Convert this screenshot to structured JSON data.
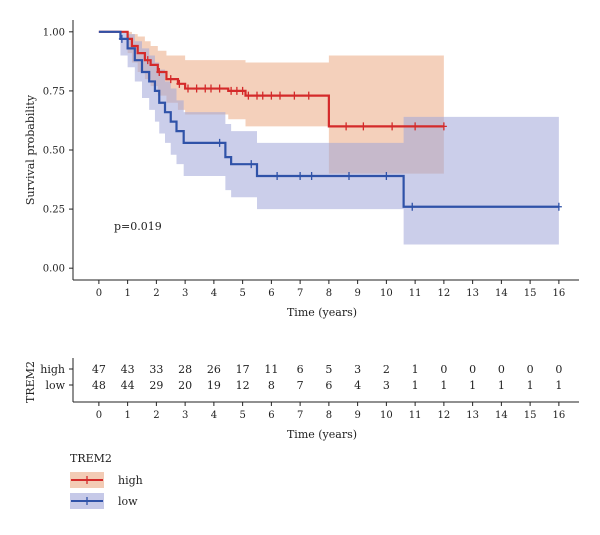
{
  "chart_data": [
    {
      "type": "line",
      "subtype": "kaplan-meier",
      "title": "",
      "xlabel": "Time (years)",
      "ylabel": "Survival probability",
      "xlim": [
        -0.9,
        16.7
      ],
      "ylim": [
        -0.05,
        1.05
      ],
      "xticks": [
        "0",
        "1",
        "2",
        "3",
        "4",
        "5",
        "6",
        "7",
        "8",
        "9",
        "10",
        "11",
        "12",
        "13",
        "14",
        "15",
        "16"
      ],
      "yticks": [
        "0.00",
        "0.25",
        "0.50",
        "0.75",
        "1.00"
      ],
      "annotation": "p=0.019",
      "grid": false,
      "series": [
        {
          "name": "high",
          "color": "#d42a2a",
          "band_color": "#eba984",
          "steps": [
            [
              0,
              1.0
            ],
            [
              1.0,
              0.97
            ],
            [
              1.15,
              0.94
            ],
            [
              1.35,
              0.91
            ],
            [
              1.6,
              0.88
            ],
            [
              1.8,
              0.86
            ],
            [
              2.05,
              0.83
            ],
            [
              2.35,
              0.8
            ],
            [
              2.75,
              0.78
            ],
            [
              3.0,
              0.76
            ],
            [
              4.5,
              0.75
            ],
            [
              5.1,
              0.73
            ],
            [
              8.0,
              0.6
            ],
            [
              12.0,
              0.6
            ]
          ],
          "ci_lower": [
            [
              0,
              1.0
            ],
            [
              1.0,
              0.91
            ],
            [
              1.15,
              0.87
            ],
            [
              1.35,
              0.83
            ],
            [
              1.6,
              0.8
            ],
            [
              1.8,
              0.77
            ],
            [
              2.05,
              0.73
            ],
            [
              2.35,
              0.7
            ],
            [
              2.75,
              0.67
            ],
            [
              3.0,
              0.65
            ],
            [
              4.5,
              0.63
            ],
            [
              5.1,
              0.6
            ],
            [
              8.0,
              0.4
            ],
            [
              12.0,
              0.4
            ]
          ],
          "ci_upper": [
            [
              0,
              1.0
            ],
            [
              1.0,
              1.0
            ],
            [
              1.15,
              0.99
            ],
            [
              1.35,
              0.98
            ],
            [
              1.6,
              0.96
            ],
            [
              1.8,
              0.94
            ],
            [
              2.05,
              0.92
            ],
            [
              2.35,
              0.9
            ],
            [
              2.75,
              0.9
            ],
            [
              3.0,
              0.88
            ],
            [
              4.5,
              0.88
            ],
            [
              5.1,
              0.87
            ],
            [
              8.0,
              0.9
            ],
            [
              12.0,
              0.9
            ]
          ],
          "censor_times": [
            1.7,
            2.1,
            2.5,
            2.8,
            3.1,
            3.4,
            3.7,
            3.9,
            4.2,
            4.6,
            4.8,
            5.0,
            5.2,
            5.5,
            5.7,
            6.0,
            6.3,
            6.8,
            7.3,
            8.6,
            9.2,
            10.2,
            11.0,
            12.0
          ]
        },
        {
          "name": "low",
          "color": "#2f52a8",
          "band_color": "#a0a5d8",
          "steps": [
            [
              0,
              1.0
            ],
            [
              0.75,
              0.97
            ],
            [
              1.0,
              0.93
            ],
            [
              1.25,
              0.88
            ],
            [
              1.5,
              0.83
            ],
            [
              1.75,
              0.79
            ],
            [
              1.95,
              0.75
            ],
            [
              2.1,
              0.7
            ],
            [
              2.3,
              0.66
            ],
            [
              2.5,
              0.62
            ],
            [
              2.7,
              0.58
            ],
            [
              2.95,
              0.53
            ],
            [
              4.4,
              0.47
            ],
            [
              4.6,
              0.44
            ],
            [
              5.5,
              0.39
            ],
            [
              10.6,
              0.26
            ],
            [
              16.0,
              0.26
            ]
          ],
          "ci_lower": [
            [
              0,
              1.0
            ],
            [
              0.75,
              0.9
            ],
            [
              1.0,
              0.85
            ],
            [
              1.25,
              0.79
            ],
            [
              1.5,
              0.72
            ],
            [
              1.75,
              0.67
            ],
            [
              1.95,
              0.62
            ],
            [
              2.1,
              0.57
            ],
            [
              2.3,
              0.53
            ],
            [
              2.5,
              0.48
            ],
            [
              2.7,
              0.44
            ],
            [
              2.95,
              0.39
            ],
            [
              4.4,
              0.33
            ],
            [
              4.6,
              0.3
            ],
            [
              5.5,
              0.25
            ],
            [
              10.6,
              0.1
            ],
            [
              16.0,
              0.1
            ]
          ],
          "ci_upper": [
            [
              0,
              1.0
            ],
            [
              0.75,
              1.0
            ],
            [
              1.0,
              0.99
            ],
            [
              1.25,
              0.96
            ],
            [
              1.5,
              0.93
            ],
            [
              1.75,
              0.9
            ],
            [
              1.95,
              0.87
            ],
            [
              2.1,
              0.84
            ],
            [
              2.3,
              0.79
            ],
            [
              2.5,
              0.76
            ],
            [
              2.7,
              0.71
            ],
            [
              2.95,
              0.66
            ],
            [
              4.4,
              0.61
            ],
            [
              4.6,
              0.58
            ],
            [
              5.5,
              0.53
            ],
            [
              10.6,
              0.64
            ],
            [
              16.0,
              0.64
            ]
          ],
          "censor_times": [
            0.8,
            4.2,
            5.3,
            6.2,
            7.0,
            7.4,
            8.7,
            10.0,
            10.9,
            16.0
          ]
        }
      ]
    },
    {
      "type": "table",
      "subtype": "risk-table",
      "title": "",
      "ylabel": "TREM2",
      "xlabel": "Time (years)",
      "columns": [
        "0",
        "1",
        "2",
        "3",
        "4",
        "5",
        "6",
        "7",
        "8",
        "9",
        "10",
        "11",
        "12",
        "13",
        "14",
        "15",
        "16"
      ],
      "rows": [
        {
          "name": "high",
          "values": [
            47,
            43,
            33,
            28,
            26,
            17,
            11,
            6,
            5,
            3,
            2,
            1,
            0,
            0,
            0,
            0,
            0
          ]
        },
        {
          "name": "low",
          "values": [
            48,
            44,
            29,
            20,
            19,
            12,
            8,
            7,
            6,
            4,
            3,
            1,
            1,
            1,
            1,
            1,
            1
          ]
        }
      ]
    }
  ],
  "legend": {
    "title": "TREM2",
    "items": [
      {
        "label": "high",
        "color": "#d42a2a",
        "fill": "#eba984"
      },
      {
        "label": "low",
        "color": "#2f52a8",
        "fill": "#a0a5d8"
      }
    ]
  }
}
